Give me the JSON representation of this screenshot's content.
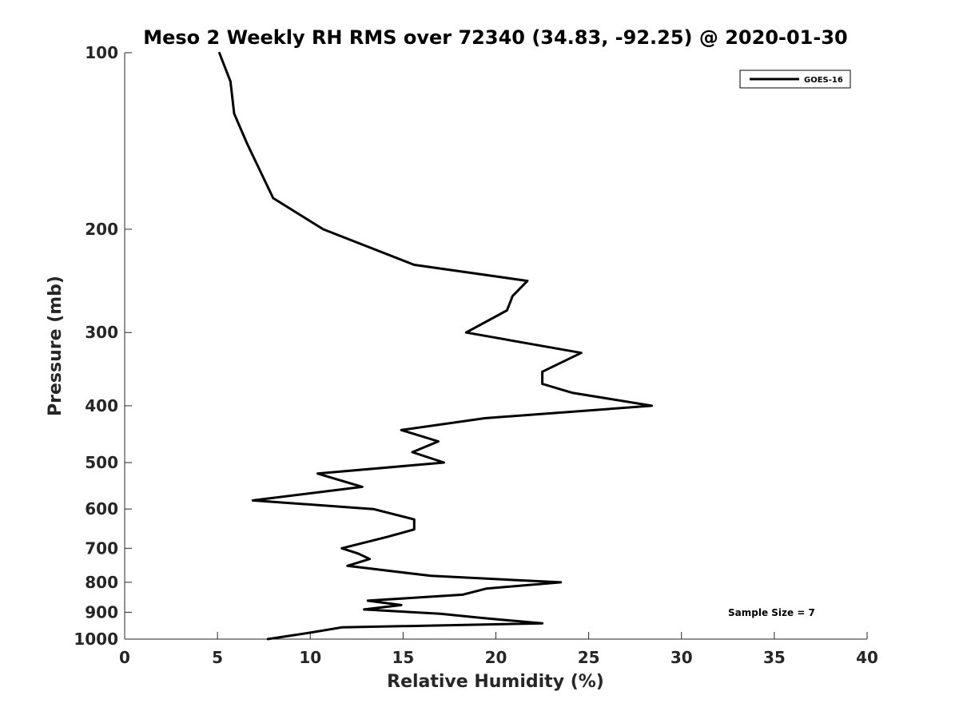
{
  "chart_data": {
    "type": "line",
    "title": "Meso 2 Weekly RH RMS over 72340 (34.83, -92.25) @ 2020-01-30",
    "xlabel": "Relative Humidity (%)",
    "ylabel": "Pressure (mb)",
    "xlim": [
      0,
      40
    ],
    "ylim": [
      100,
      1000
    ],
    "y_scale": "log",
    "y_reversed": true,
    "x_ticks": [
      "0",
      "5",
      "10",
      "15",
      "20",
      "25",
      "30",
      "35",
      "40"
    ],
    "y_ticks": [
      "100",
      "200",
      "300",
      "400",
      "500",
      "600",
      "700",
      "800",
      "900",
      "1000"
    ],
    "grid": false,
    "legend_position": "top-right",
    "series": [
      {
        "name": "GOES-16",
        "color": "#000000",
        "x": [
          5.1,
          5.7,
          5.9,
          6.6,
          8.0,
          10.7,
          15.6,
          21.7,
          20.9,
          20.6,
          18.4,
          24.6,
          22.5,
          22.5,
          24.1,
          28.4,
          19.4,
          14.9,
          16.9,
          15.5,
          17.2,
          10.4,
          12.8,
          6.9,
          13.4,
          15.6,
          15.6,
          14.1,
          11.7,
          12.6,
          13.2,
          12.0,
          16.5,
          23.5,
          19.5,
          18.2,
          13.1,
          14.9,
          12.9,
          17.0,
          19.2,
          22.5,
          11.7,
          10.0,
          7.7
        ],
        "y": [
          100,
          112,
          127,
          143,
          177,
          200,
          230,
          245,
          260,
          275,
          300,
          325,
          350,
          367,
          380,
          400,
          420,
          440,
          460,
          480,
          500,
          522,
          550,
          580,
          600,
          625,
          650,
          670,
          700,
          715,
          730,
          750,
          780,
          800,
          820,
          840,
          860,
          875,
          890,
          905,
          920,
          940,
          955,
          975,
          1000
        ]
      }
    ],
    "annotations": [
      "Sample Size = 7"
    ]
  }
}
